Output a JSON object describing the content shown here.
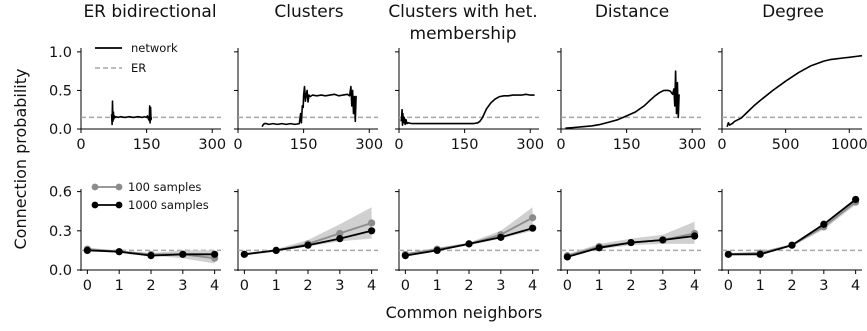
{
  "figure": {
    "ylabel": "Connection probability",
    "xlabel": "Common neighbors",
    "colors": {
      "network": "#000000",
      "er": "#a8a8a8",
      "samples100": "#8c8c8c",
      "samples1000": "#000000",
      "band": "#d0d0d0"
    }
  },
  "chart_data": [
    {
      "type": "line",
      "title": "ER bidirectional",
      "row": "top",
      "xlim": [
        0,
        320
      ],
      "ylim": [
        0,
        1.05
      ],
      "xticks": [
        0,
        150,
        300
      ],
      "yticks": [
        0.0,
        0.5,
        1.0
      ],
      "ytick_labels": [
        "0.0",
        "0.5",
        "1.0"
      ],
      "grid": false,
      "legend": {
        "position": "top-left",
        "entries": [
          "network",
          "ER"
        ]
      },
      "er_level": 0.15,
      "series": [
        {
          "name": "network",
          "x": [
            70,
            71,
            72,
            73,
            74,
            75,
            76,
            78,
            80,
            85,
            90,
            100,
            110,
            120,
            130,
            140,
            145,
            150,
            152,
            154,
            156,
            157,
            158,
            159,
            160,
            161
          ],
          "y": [
            0.19,
            0.06,
            0.36,
            0.1,
            0.22,
            0.13,
            0.17,
            0.15,
            0.16,
            0.15,
            0.16,
            0.15,
            0.16,
            0.15,
            0.16,
            0.15,
            0.16,
            0.15,
            0.17,
            0.13,
            0.11,
            0.3,
            0.08,
            0.28,
            0.12,
            0.15
          ]
        },
        {
          "name": "ER",
          "x": [
            0,
            320
          ],
          "y": [
            0.15,
            0.15
          ]
        }
      ]
    },
    {
      "type": "line",
      "title": "Clusters",
      "row": "top",
      "xlim": [
        0,
        320
      ],
      "ylim": [
        0,
        1.05
      ],
      "xticks": [
        0,
        150,
        300
      ],
      "yticks": [
        0.0,
        0.5,
        1.0
      ],
      "ytick_labels": [
        "",
        "",
        ""
      ],
      "grid": false,
      "er_level": 0.15,
      "series": [
        {
          "name": "network",
          "x": [
            55,
            57,
            60,
            65,
            70,
            80,
            90,
            100,
            110,
            120,
            130,
            140,
            143,
            145,
            147,
            149,
            150,
            152,
            154,
            156,
            158,
            160,
            162,
            165,
            170,
            180,
            190,
            200,
            210,
            220,
            230,
            240,
            250,
            255,
            258,
            260,
            262,
            264,
            266,
            268,
            270
          ],
          "y": [
            0.03,
            0.05,
            0.07,
            0.07,
            0.06,
            0.07,
            0.06,
            0.07,
            0.06,
            0.07,
            0.06,
            0.07,
            0.2,
            0.08,
            0.3,
            0.28,
            0.43,
            0.55,
            0.36,
            0.45,
            0.5,
            0.35,
            0.44,
            0.42,
            0.44,
            0.43,
            0.44,
            0.43,
            0.44,
            0.45,
            0.43,
            0.44,
            0.45,
            0.43,
            0.55,
            0.3,
            0.5,
            0.2,
            0.42,
            0.1,
            0.43
          ]
        },
        {
          "name": "ER",
          "x": [
            0,
            320
          ],
          "y": [
            0.15,
            0.15
          ]
        }
      ]
    },
    {
      "type": "line",
      "title": "Clusters with het. membership",
      "row": "top",
      "xlim": [
        0,
        320
      ],
      "ylim": [
        0,
        1.05
      ],
      "xticks": [
        0,
        150,
        300
      ],
      "yticks": [
        0.0,
        0.5,
        1.0
      ],
      "ytick_labels": [
        "",
        "",
        ""
      ],
      "grid": false,
      "er_level": 0.15,
      "series": [
        {
          "name": "network",
          "x": [
            5,
            6,
            7,
            8,
            9,
            10,
            12,
            14,
            16,
            18,
            20,
            30,
            50,
            80,
            110,
            140,
            170,
            180,
            185,
            190,
            195,
            200,
            210,
            220,
            230,
            240,
            250,
            260,
            270,
            280,
            290,
            300,
            310
          ],
          "y": [
            0.1,
            0.15,
            0.25,
            0.05,
            0.2,
            0.08,
            0.15,
            0.06,
            0.12,
            0.07,
            0.08,
            0.07,
            0.07,
            0.07,
            0.07,
            0.07,
            0.07,
            0.08,
            0.1,
            0.14,
            0.2,
            0.26,
            0.34,
            0.39,
            0.42,
            0.43,
            0.43,
            0.44,
            0.44,
            0.44,
            0.45,
            0.44,
            0.44
          ]
        },
        {
          "name": "ER",
          "x": [
            0,
            320
          ],
          "y": [
            0.15,
            0.15
          ]
        }
      ]
    },
    {
      "type": "line",
      "title": "Distance",
      "row": "top",
      "xlim": [
        0,
        320
      ],
      "ylim": [
        0,
        1.05
      ],
      "xticks": [
        0,
        150,
        300
      ],
      "yticks": [
        0.0,
        0.5,
        1.0
      ],
      "ytick_labels": [
        "",
        "",
        ""
      ],
      "grid": false,
      "er_level": 0.15,
      "series": [
        {
          "name": "network",
          "x": [
            10,
            30,
            50,
            70,
            90,
            110,
            130,
            150,
            170,
            190,
            205,
            215,
            225,
            235,
            245,
            250,
            255,
            258,
            260,
            262,
            264,
            266,
            268,
            270
          ],
          "y": [
            0.01,
            0.02,
            0.03,
            0.04,
            0.06,
            0.09,
            0.12,
            0.17,
            0.22,
            0.3,
            0.38,
            0.43,
            0.47,
            0.5,
            0.5,
            0.49,
            0.45,
            0.52,
            0.3,
            0.75,
            0.2,
            0.6,
            0.15,
            0.45
          ]
        },
        {
          "name": "ER",
          "x": [
            0,
            320
          ],
          "y": [
            0.15,
            0.15
          ]
        }
      ]
    },
    {
      "type": "line",
      "title": "Degree",
      "row": "top",
      "xlim": [
        0,
        1100
      ],
      "ylim": [
        0,
        1.05
      ],
      "xticks": [
        0,
        500,
        1000
      ],
      "yticks": [
        0.0,
        0.5,
        1.0
      ],
      "ytick_labels": [
        "",
        "",
        ""
      ],
      "grid": false,
      "er_level": 0.15,
      "series": [
        {
          "name": "network",
          "x": [
            40,
            50,
            60,
            80,
            100,
            150,
            200,
            250,
            300,
            400,
            500,
            600,
            700,
            800,
            850,
            900,
            950,
            1000,
            1050,
            1100
          ],
          "y": [
            0.03,
            0.08,
            0.05,
            0.07,
            0.1,
            0.14,
            0.22,
            0.3,
            0.37,
            0.5,
            0.62,
            0.73,
            0.82,
            0.88,
            0.9,
            0.91,
            0.92,
            0.93,
            0.94,
            0.95
          ]
        },
        {
          "name": "ER",
          "x": [
            0,
            1100
          ],
          "y": [
            0.15,
            0.15
          ]
        }
      ]
    },
    {
      "type": "line",
      "title": "",
      "row": "bottom",
      "xlim": [
        -0.2,
        4.2
      ],
      "ylim": [
        0,
        0.62
      ],
      "categories": [
        0,
        1,
        2,
        3,
        4
      ],
      "xticks": [
        0,
        1,
        2,
        3,
        4
      ],
      "yticks": [
        0.0,
        0.3,
        0.6
      ],
      "ytick_labels": [
        "0.0",
        "0.3",
        "0.6"
      ],
      "grid": false,
      "legend": {
        "position": "top-left",
        "entries": [
          "100 samples",
          "1000 samples"
        ]
      },
      "er_level": 0.15,
      "series": [
        {
          "name": "100 samples",
          "values": [
            0.16,
            0.14,
            0.12,
            0.12,
            0.09
          ],
          "ci_low": [
            0.15,
            0.13,
            0.11,
            0.09,
            0.05
          ],
          "ci_high": [
            0.17,
            0.15,
            0.13,
            0.15,
            0.15
          ]
        },
        {
          "name": "1000 samples",
          "values": [
            0.15,
            0.14,
            0.11,
            0.12,
            0.12
          ]
        }
      ]
    },
    {
      "type": "line",
      "title": "",
      "row": "bottom",
      "xlim": [
        -0.2,
        4.2
      ],
      "ylim": [
        0,
        0.62
      ],
      "categories": [
        0,
        1,
        2,
        3,
        4
      ],
      "xticks": [
        0,
        1,
        2,
        3,
        4
      ],
      "yticks": [
        0.0,
        0.3,
        0.6
      ],
      "ytick_labels": [
        "",
        "",
        ""
      ],
      "grid": false,
      "er_level": 0.15,
      "series": [
        {
          "name": "100 samples",
          "values": [
            0.12,
            0.15,
            0.2,
            0.28,
            0.36
          ],
          "ci_low": [
            0.11,
            0.14,
            0.18,
            0.22,
            0.24
          ],
          "ci_high": [
            0.13,
            0.16,
            0.23,
            0.35,
            0.48
          ]
        },
        {
          "name": "1000 samples",
          "values": [
            0.12,
            0.15,
            0.19,
            0.24,
            0.3
          ]
        }
      ]
    },
    {
      "type": "line",
      "title": "",
      "row": "bottom",
      "xlim": [
        -0.2,
        4.2
      ],
      "ylim": [
        0,
        0.62
      ],
      "categories": [
        0,
        1,
        2,
        3,
        4
      ],
      "xticks": [
        0,
        1,
        2,
        3,
        4
      ],
      "yticks": [
        0.0,
        0.3,
        0.6
      ],
      "ytick_labels": [
        "",
        "",
        ""
      ],
      "grid": false,
      "er_level": 0.15,
      "series": [
        {
          "name": "100 samples",
          "values": [
            0.12,
            0.16,
            0.2,
            0.27,
            0.4
          ],
          "ci_low": [
            0.11,
            0.15,
            0.19,
            0.24,
            0.3
          ],
          "ci_high": [
            0.13,
            0.17,
            0.21,
            0.3,
            0.48
          ]
        },
        {
          "name": "1000 samples",
          "values": [
            0.11,
            0.15,
            0.2,
            0.25,
            0.32
          ]
        }
      ]
    },
    {
      "type": "line",
      "title": "",
      "row": "bottom",
      "xlim": [
        -0.2,
        4.2
      ],
      "ylim": [
        0,
        0.62
      ],
      "categories": [
        0,
        1,
        2,
        3,
        4
      ],
      "xticks": [
        0,
        1,
        2,
        3,
        4
      ],
      "yticks": [
        0.0,
        0.3,
        0.6
      ],
      "ytick_labels": [
        "",
        "",
        ""
      ],
      "grid": false,
      "er_level": 0.15,
      "series": [
        {
          "name": "100 samples",
          "values": [
            0.11,
            0.18,
            0.21,
            0.23,
            0.28
          ],
          "ci_low": [
            0.1,
            0.16,
            0.19,
            0.2,
            0.2
          ],
          "ci_high": [
            0.12,
            0.2,
            0.24,
            0.27,
            0.37
          ]
        },
        {
          "name": "1000 samples",
          "values": [
            0.1,
            0.17,
            0.21,
            0.23,
            0.26
          ]
        }
      ]
    },
    {
      "type": "line",
      "title": "",
      "row": "bottom",
      "xlim": [
        -0.2,
        4.2
      ],
      "ylim": [
        0,
        0.62
      ],
      "categories": [
        0,
        1,
        2,
        3,
        4
      ],
      "xticks": [
        0,
        1,
        2,
        3,
        4
      ],
      "yticks": [
        0.0,
        0.3,
        0.6
      ],
      "ytick_labels": [
        "",
        "",
        ""
      ],
      "grid": false,
      "er_level": 0.15,
      "series": [
        {
          "name": "100 samples",
          "values": [
            0.12,
            0.13,
            0.19,
            0.33,
            0.52
          ],
          "ci_low": [
            0.11,
            0.12,
            0.18,
            0.31,
            0.5
          ],
          "ci_high": [
            0.13,
            0.14,
            0.2,
            0.36,
            0.55
          ]
        },
        {
          "name": "1000 samples",
          "values": [
            0.12,
            0.12,
            0.19,
            0.35,
            0.54
          ]
        }
      ]
    }
  ]
}
